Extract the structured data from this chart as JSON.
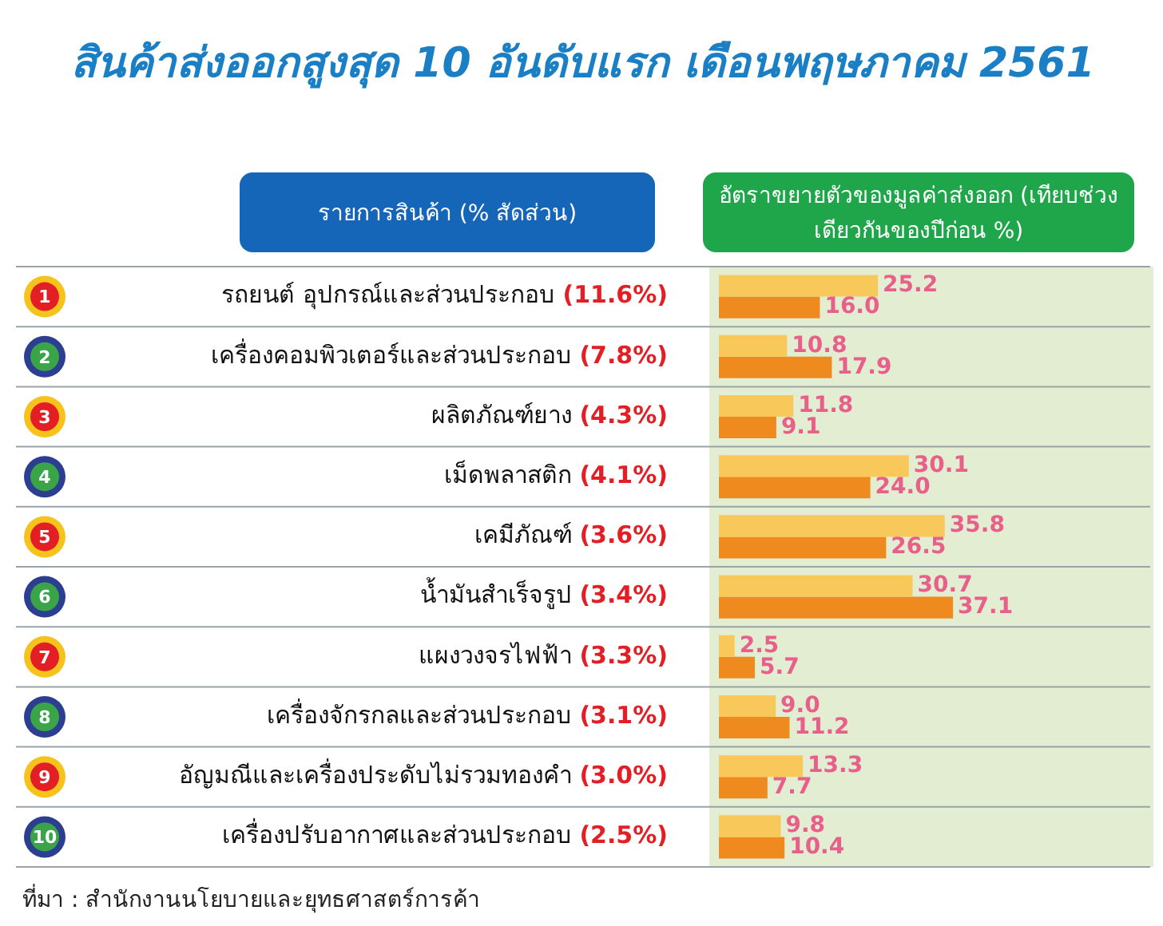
{
  "chart_data": {
    "type": "bar",
    "orientation": "horizontal",
    "title": "สินค้าส่งออกสูงสุด 10 อันดับแรก เดือนพฤษภาคม 2561",
    "xlabel": "อัตราขยายตัวของมูลค่าส่งออก (เทียบช่วงเดียวกันของปีก่อน %)",
    "categories": [
      "รถยนต์ อุปกรณ์และส่วนประกอบ (11.6%)",
      "เครื่องคอมพิวเตอร์และส่วนประกอบ (7.8%)",
      "ผลิตภัณฑ์ยาง (4.3%)",
      "เม็ดพลาสติก (4.1%)",
      "เคมีภัณฑ์ (3.6%)",
      "น้ำมันสำเร็จรูป (3.4%)",
      "แผงวงจรไฟฟ้า (3.3%)",
      "เครื่องจักรกลและส่วนประกอบ (3.1%)",
      "อัญมณีและเครื่องประดับไม่รวมทองคำ (3.0%)",
      "เครื่องปรับอากาศและส่วนประกอบ (2.5%)"
    ],
    "series": [
      {
        "color": "#f9c85a",
        "values": [
          25.2,
          10.8,
          11.8,
          30.1,
          35.8,
          30.7,
          2.5,
          9.0,
          13.3,
          9.8
        ],
        "value_labels": [
          "25.2",
          "10.8",
          "11.8",
          "30.1",
          "35.8",
          "30.7",
          "2.5",
          "9.0",
          "13.3",
          "9.8"
        ]
      },
      {
        "color": "#ef8a1e",
        "values": [
          16.0,
          17.9,
          9.1,
          24.0,
          26.5,
          37.1,
          5.7,
          11.2,
          7.7,
          10.4
        ],
        "value_labels": [
          "16.0",
          "17.9",
          "9.1",
          "24.0",
          "26.5",
          "37.1",
          "5.7",
          "11.2",
          "7.7",
          "10.4"
        ]
      }
    ],
    "tick_labels": false,
    "legend": false,
    "annotations": [
      "1",
      "2",
      "3",
      "4",
      "5",
      "6",
      "7",
      "8",
      "9",
      "10",
      "รายการสินค้า (% สัดส่วน)",
      "ที่มา : สำนักงานนโยบายและยุทธศาสตร์การค้า"
    ]
  }
}
